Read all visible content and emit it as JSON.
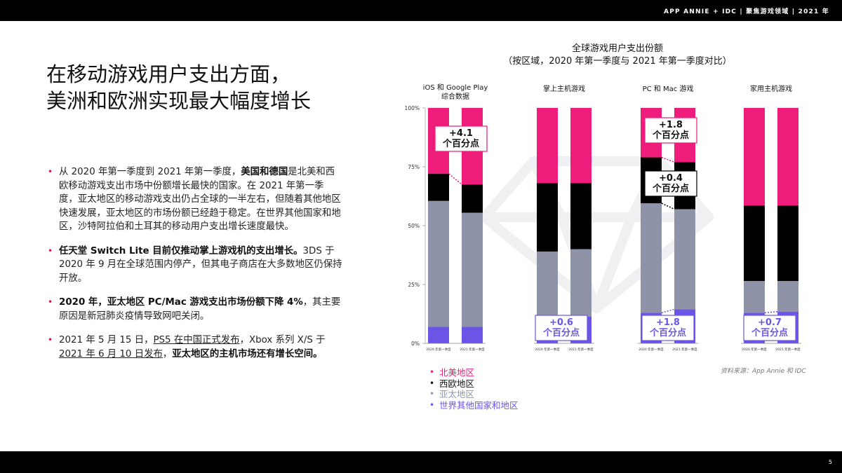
{
  "header": {
    "text": "APP ANNIE + IDC  |  聚焦游戏领域  |  2021 年"
  },
  "page_number": "5",
  "title_lines": [
    "在移动游戏用户支出方面，",
    "美洲和欧洲实现最大幅度增长"
  ],
  "bullets": [
    [
      {
        "t": "从 2020 年第一季度到 2021 年第一季度，"
      },
      {
        "t": "美国和德国",
        "b": true
      },
      {
        "t": "是北美和西欧移动游戏支出市场中份额增长最快的国家。在 2021 年第一季度，亚太地区的移动游戏支出仍占全球的一半左右，但随着其他地区快速发展，亚太地区的市场份额已经趋于稳定。在世界其他国家和地区，沙特阿拉伯和土耳其的移动用户支出增长速度最快。"
      }
    ],
    [
      {
        "t": "任天堂 Switch Lite 目前仅推动掌上游戏机的支出增长。",
        "b": true
      },
      {
        "t": "3DS 于 2020 年 9 月在全球范围内停产，但其电子商店在大多数地区仍保持开放。"
      }
    ],
    [
      {
        "t": "2020 年，亚太地区 PC/Mac 游戏支出市场份额下降 4%",
        "b": true
      },
      {
        "t": "，其主要原因是新冠肺炎疫情导致网吧关闭。"
      }
    ],
    [
      {
        "t": "2021 年 5 月 15 日，"
      },
      {
        "t": "PS5 在中国正式发布",
        "u": true
      },
      {
        "t": "，Xbox 系列 X/S 于 "
      },
      {
        "t": "2021 年 6 月 10 日发布",
        "u": true
      },
      {
        "t": "，"
      },
      {
        "t": "亚太地区的主机市场还有增长空间。",
        "b": true
      }
    ]
  ],
  "source": "资料来源：App Annie 和 IDC",
  "chart_data": {
    "type": "bar",
    "stacked": true,
    "title": "全球游戏用户支出份额",
    "subtitle": "（按区域，2020 年第一季度与 2021 年第一季度对比）",
    "groups": [
      "iOS 和 Google Play\n综合数据",
      "掌上主机游戏",
      "PC 和 Mac 游戏",
      "家用主机游戏"
    ],
    "bar_labels": [
      "2020 年第一季度",
      "2021 年第一季度"
    ],
    "yticks": [
      "0%",
      "25%",
      "50%",
      "75%",
      "100%"
    ],
    "ylim": [
      0,
      100
    ],
    "series": [
      {
        "name": "世界其他国家和地区",
        "color": "#6b55e6"
      },
      {
        "name": "亚太地区",
        "color": "#8f93a8"
      },
      {
        "name": "西欧地区",
        "color": "#000000"
      },
      {
        "name": "北美地区",
        "color": "#ee1c7a"
      }
    ],
    "bars": [
      [
        [
          7.0,
          53.5,
          11.5,
          28.0
        ],
        [
          7.0,
          48.5,
          12.0,
          32.5
        ]
      ],
      [
        [
          11.0,
          28.0,
          29.0,
          32.0
        ],
        [
          11.5,
          28.5,
          28.0,
          32.0
        ]
      ],
      [
        [
          13.0,
          46.5,
          19.5,
          21.0
        ],
        [
          14.5,
          42.5,
          20.0,
          23.0
        ]
      ],
      [
        [
          13.0,
          13.5,
          32.0,
          41.5
        ],
        [
          13.5,
          13.0,
          32.0,
          41.5
        ]
      ]
    ],
    "annotations": [
      {
        "group": 0,
        "text": [
          "+4.1",
          "个百分点"
        ]
      },
      {
        "group": 1,
        "text": [
          "+0.6",
          "个百分点"
        ]
      },
      {
        "group": 2,
        "text": [
          "+1.8",
          "个百分点"
        ]
      },
      {
        "group": 2,
        "text": [
          "+0.4",
          "个百分点"
        ]
      },
      {
        "group": 2,
        "text": [
          "+1.8",
          "个百分点"
        ]
      },
      {
        "group": 3,
        "text": [
          "+0.7",
          "个百分点"
        ]
      }
    ],
    "legend": [
      "北美地区",
      "西欧地区",
      "亚太地区",
      "世界其他国家和地区"
    ],
    "legend_colors": [
      "#ee1c7a",
      "#000000",
      "#8f93a8",
      "#6b55e6"
    ]
  }
}
